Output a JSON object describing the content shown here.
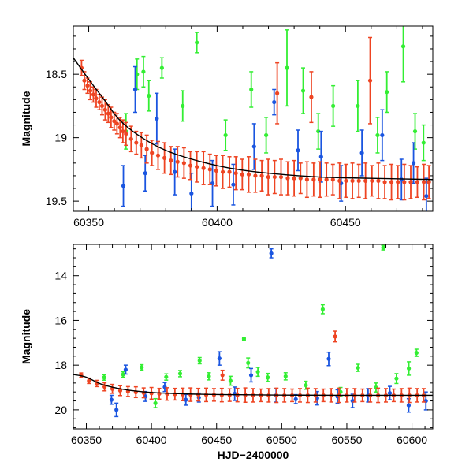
{
  "chart_data": [
    {
      "type": "scatter",
      "panel": "top",
      "xlabel": "",
      "ylabel": "Magnitude",
      "xlim": [
        60344,
        60484
      ],
      "ylim": [
        19.58,
        18.12
      ],
      "y_inverted": true,
      "xticks": [
        60350,
        60400,
        60450
      ],
      "xtick_labels": [
        "60350",
        "60400",
        "60450"
      ],
      "yticks": [
        18.5,
        19,
        19.5
      ],
      "ytick_labels": [
        "18.5",
        "19",
        "19.5"
      ],
      "grid": false,
      "model_curve": {
        "color": "#000000",
        "x": [
          60344,
          60350,
          60356,
          60362,
          60370,
          60380,
          60392,
          60405,
          60420,
          60440,
          60460,
          60484
        ],
        "y": [
          18.37,
          18.54,
          18.7,
          18.86,
          18.99,
          19.1,
          19.18,
          19.24,
          19.28,
          19.31,
          19.32,
          19.33
        ]
      },
      "series": [
        {
          "color": "#33ee33",
          "x": [
            60364.5,
            60368.8,
            60371.3,
            60373.4,
            60378.5,
            60386.6,
            60392.1,
            60403.3,
            60413.3,
            60419.1,
            60427.2,
            60433.5,
            60439.4,
            60445.2,
            60454.8,
            60462.5,
            60466.1,
            60472.5,
            60477.1,
            60480.4
          ],
          "y": [
            18.95,
            18.5,
            18.48,
            18.67,
            18.45,
            18.75,
            18.25,
            18.98,
            18.62,
            18.98,
            18.45,
            18.63,
            18.95,
            18.75,
            18.75,
            18.98,
            18.64,
            18.28,
            18.95,
            19.04
          ],
          "err": [
            0.14,
            0.12,
            0.12,
            0.12,
            0.08,
            0.12,
            0.08,
            0.12,
            0.14,
            0.14,
            0.3,
            0.18,
            0.14,
            0.16,
            0.2,
            0.14,
            0.16,
            0.28,
            0.14,
            0.14
          ]
        },
        {
          "color": "#1a55e0",
          "x": [
            60363.5,
            60368.1,
            60372.0,
            60376.5,
            60383.5,
            60390.0,
            60398.2,
            60406.3,
            60414.4,
            60422.2,
            60431.5,
            60440.5,
            60448.3,
            60456.4,
            60464.3,
            60471.8,
            60476.5,
            60481.5
          ],
          "y": [
            19.38,
            18.62,
            19.28,
            18.85,
            19.27,
            19.44,
            19.36,
            19.37,
            19.07,
            18.72,
            19.1,
            19.15,
            19.36,
            19.12,
            18.98,
            19.33,
            19.2,
            19.46
          ],
          "err": [
            0.16,
            0.18,
            0.14,
            0.2,
            0.18,
            0.16,
            0.18,
            0.16,
            0.18,
            0.1,
            0.16,
            0.2,
            0.14,
            0.18,
            0.2,
            0.16,
            0.16,
            0.14
          ]
        },
        {
          "color": "#ee4422",
          "x": [
            60347.2,
            60348.3,
            60349.5,
            60350.6,
            60351.8,
            60352.9,
            60354.1,
            60355.2,
            60356.4,
            60357.6,
            60358.7,
            60359.9,
            60361.0,
            60362.2,
            60363.3,
            60364.5,
            60366.5,
            60368.5,
            60370.5,
            60372.6,
            60374.6,
            60377.0,
            60379.5,
            60382.0,
            60384.6,
            60387.1,
            60389.6,
            60392.1,
            60394.7,
            60397.2,
            60399.7,
            60402.2,
            60404.8,
            60407.3,
            60409.8,
            60412.3,
            60414.9,
            60417.4,
            60419.9,
            60422.4,
            60424.9,
            60427.5,
            60430.0,
            60432.5,
            60435.0,
            60437.6,
            60440.1,
            60442.6,
            60445.1,
            60447.7,
            60450.2,
            60452.7,
            60455.2,
            60457.8,
            60460.3,
            60462.8,
            60465.3,
            60467.9,
            60470.4,
            60472.9,
            60475.4,
            60478.0,
            60480.5,
            60482.5,
            60423.4,
            60459.6,
            60436.7
          ],
          "y": [
            18.45,
            18.55,
            18.59,
            18.63,
            18.66,
            18.69,
            18.72,
            18.75,
            18.78,
            18.81,
            18.84,
            18.87,
            18.89,
            18.92,
            18.95,
            18.97,
            19.01,
            19.04,
            19.06,
            19.09,
            19.12,
            19.14,
            19.16,
            19.18,
            19.19,
            19.2,
            19.22,
            19.23,
            19.24,
            19.25,
            19.26,
            19.27,
            19.27,
            19.28,
            19.29,
            19.29,
            19.3,
            19.3,
            19.31,
            19.31,
            19.31,
            19.32,
            19.32,
            19.32,
            19.33,
            19.33,
            19.33,
            19.33,
            19.33,
            19.34,
            19.34,
            19.34,
            19.34,
            19.34,
            19.34,
            19.34,
            19.35,
            19.35,
            19.35,
            19.35,
            19.35,
            19.35,
            19.35,
            19.35,
            18.65,
            18.55,
            18.68
          ],
          "err": [
            0.06,
            0.07,
            0.06,
            0.07,
            0.06,
            0.07,
            0.06,
            0.07,
            0.08,
            0.07,
            0.08,
            0.07,
            0.08,
            0.08,
            0.09,
            0.09,
            0.1,
            0.09,
            0.1,
            0.11,
            0.1,
            0.11,
            0.12,
            0.11,
            0.12,
            0.12,
            0.11,
            0.12,
            0.13,
            0.12,
            0.12,
            0.13,
            0.12,
            0.13,
            0.12,
            0.14,
            0.13,
            0.12,
            0.14,
            0.13,
            0.14,
            0.13,
            0.14,
            0.12,
            0.14,
            0.13,
            0.14,
            0.13,
            0.12,
            0.14,
            0.13,
            0.14,
            0.13,
            0.14,
            0.12,
            0.14,
            0.13,
            0.14,
            0.13,
            0.14,
            0.13,
            0.12,
            0.14,
            0.13,
            0.24,
            0.34,
            0.2
          ]
        }
      ]
    },
    {
      "type": "scatter",
      "panel": "bottom",
      "xlabel": "HJD−2400000",
      "ylabel": "Magnitude",
      "xlim": [
        60340,
        60616
      ],
      "ylim": [
        20.85,
        12.6
      ],
      "y_inverted": true,
      "xticks": [
        60350,
        60400,
        60450,
        60500,
        60550,
        60600
      ],
      "xtick_labels": [
        "60350",
        "60400",
        "60450",
        "60500",
        "60550",
        "60600"
      ],
      "yticks": [
        14,
        16,
        18,
        20
      ],
      "ytick_labels": [
        "14",
        "16",
        "18",
        "20"
      ],
      "grid": false,
      "model_curve": {
        "color": "#000000",
        "x": [
          60340,
          60350,
          60362,
          60380,
          60400,
          60430,
          60460,
          60500,
          60550,
          60616
        ],
        "y": [
          18.42,
          18.54,
          18.86,
          19.1,
          19.22,
          19.29,
          19.32,
          19.34,
          19.35,
          19.35
        ]
      },
      "series": [
        {
          "color": "#33ee33",
          "x": [
            60363.7,
            60378.2,
            60392.5,
            60403.0,
            60411.3,
            60422.0,
            60437.0,
            60444.1,
            60460.7,
            60474.2,
            60481.7,
            60489.3,
            60503.0,
            60518.5,
            60531.5,
            60545.2,
            60558.6,
            60572.4,
            60577.9,
            60588.1,
            60597.6,
            60603.5,
            60471.0
          ],
          "y": [
            18.55,
            18.42,
            18.1,
            19.7,
            18.53,
            18.38,
            17.8,
            18.5,
            18.7,
            17.9,
            18.3,
            18.55,
            18.5,
            18.9,
            15.5,
            19.2,
            18.12,
            19.0,
            12.75,
            18.6,
            18.15,
            17.45,
            16.82
          ],
          "err": [
            0.12,
            0.12,
            0.12,
            0.2,
            0.14,
            0.14,
            0.14,
            0.16,
            0.2,
            0.22,
            0.2,
            0.18,
            0.16,
            0.18,
            0.2,
            0.2,
            0.16,
            0.2,
            0.1,
            0.22,
            0.3,
            0.16,
            0.06
          ]
        },
        {
          "color": "#1a55e0",
          "x": [
            60369.3,
            60373.1,
            60380.2,
            60395.4,
            60410.2,
            60426.4,
            60436.4,
            60452.2,
            60463.9,
            60476.5,
            60492.0,
            60495.7,
            60510.8,
            60527.2,
            60536.1,
            60542.8,
            60554.4,
            60566.3,
            60583.0,
            60597.5,
            60610.7
          ],
          "y": [
            19.55,
            20.0,
            18.2,
            19.4,
            18.98,
            19.55,
            19.45,
            17.7,
            19.28,
            18.45,
            13.0,
            19.35,
            19.52,
            19.48,
            17.72,
            19.4,
            19.6,
            19.35,
            19.25,
            19.8,
            19.6
          ],
          "err": [
            0.2,
            0.3,
            0.2,
            0.22,
            0.2,
            0.24,
            0.2,
            0.3,
            0.3,
            0.3,
            0.2,
            0.3,
            0.2,
            0.3,
            0.3,
            0.3,
            0.3,
            0.3,
            0.3,
            0.3,
            0.4
          ]
        },
        {
          "color": "#ee4422",
          "x": [
            60346.0,
            60352.0,
            60358.0,
            60364.0,
            60370.0,
            60376.0,
            60382.0,
            60388.0,
            60394.0,
            60400.0,
            60406.0,
            60412.0,
            60418.0,
            60424.0,
            60430.0,
            60436.0,
            60442.0,
            60448.0,
            60454.0,
            60460.0,
            60466.0,
            60472.0,
            60478.0,
            60484.0,
            60490.0,
            60496.0,
            60502.0,
            60508.0,
            60514.0,
            60520.0,
            60526.0,
            60532.0,
            60538.0,
            60544.0,
            60550.0,
            60556.0,
            60562.0,
            60568.0,
            60574.0,
            60580.0,
            60586.0,
            60592.0,
            60598.0,
            60604.0,
            60609.0,
            60541.0,
            60454.5
          ],
          "y": [
            18.45,
            18.7,
            18.82,
            18.97,
            19.06,
            19.14,
            19.18,
            19.21,
            19.24,
            19.26,
            19.28,
            19.29,
            19.3,
            19.31,
            19.32,
            19.32,
            19.33,
            19.33,
            19.34,
            19.34,
            19.34,
            19.34,
            19.35,
            19.35,
            19.35,
            19.35,
            19.35,
            19.35,
            19.35,
            19.35,
            19.35,
            19.35,
            19.35,
            19.35,
            19.35,
            19.35,
            19.35,
            19.35,
            19.35,
            19.35,
            19.35,
            19.35,
            19.35,
            19.35,
            19.35,
            16.72,
            18.45
          ],
          "err": [
            0.1,
            0.12,
            0.14,
            0.18,
            0.2,
            0.22,
            0.22,
            0.24,
            0.22,
            0.26,
            0.24,
            0.28,
            0.26,
            0.28,
            0.3,
            0.28,
            0.3,
            0.28,
            0.3,
            0.28,
            0.3,
            0.32,
            0.3,
            0.28,
            0.3,
            0.32,
            0.3,
            0.28,
            0.3,
            0.32,
            0.3,
            0.28,
            0.3,
            0.32,
            0.3,
            0.3,
            0.28,
            0.3,
            0.32,
            0.3,
            0.28,
            0.3,
            0.32,
            0.3,
            0.3,
            0.24,
            0.22
          ]
        }
      ]
    }
  ]
}
